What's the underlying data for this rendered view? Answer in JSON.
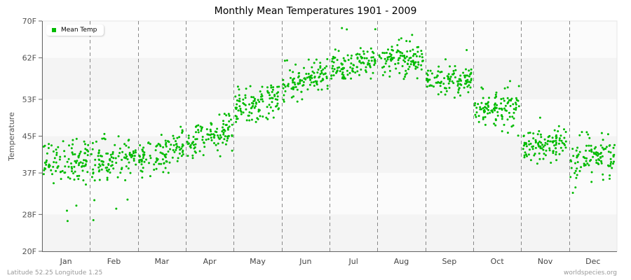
{
  "chart_data": {
    "type": "scatter",
    "title": "Monthly Mean Temperatures 1901 - 2009",
    "xlabel": "",
    "ylabel": "Temperature",
    "ylim": [
      20,
      70
    ],
    "y_ticks": [
      "70F",
      "62F",
      "53F",
      "45F",
      "37F",
      "28F",
      "20F"
    ],
    "y_tick_values": [
      70,
      62,
      53,
      45,
      37,
      28,
      20
    ],
    "categories": [
      "Jan",
      "Feb",
      "Mar",
      "Apr",
      "May",
      "Jun",
      "Jul",
      "Aug",
      "Sep",
      "Oct",
      "Nov",
      "Dec"
    ],
    "legend": [
      {
        "name": "Mean Temp",
        "color": "#00bb00"
      }
    ],
    "legend_position": "top-left",
    "grid": "alternating horizontal bands, dashed vertical month dividers",
    "points_per_month": 109,
    "series": [
      {
        "name": "Mean Temp",
        "color": "#00bb00",
        "monthly_summary": [
          {
            "month": "Jan",
            "start_mean": 38.5,
            "end_mean": 40.0,
            "spread": 3.2,
            "min": 26.5,
            "max": 45.0
          },
          {
            "month": "Feb",
            "start_mean": 39.0,
            "end_mean": 40.5,
            "spread": 3.0,
            "min": 26.5,
            "max": 45.5
          },
          {
            "month": "Mar",
            "start_mean": 39.5,
            "end_mean": 42.5,
            "spread": 2.4,
            "min": 36.0,
            "max": 47.5
          },
          {
            "month": "Apr",
            "start_mean": 43.5,
            "end_mean": 47.0,
            "spread": 2.0,
            "min": 40.0,
            "max": 50.0
          },
          {
            "month": "May",
            "start_mean": 50.5,
            "end_mean": 53.5,
            "spread": 2.2,
            "min": 48.0,
            "max": 56.0
          },
          {
            "month": "Jun",
            "start_mean": 55.5,
            "end_mean": 59.0,
            "spread": 2.0,
            "min": 52.5,
            "max": 62.0
          },
          {
            "month": "Jul",
            "start_mean": 60.0,
            "end_mean": 62.0,
            "spread": 2.0,
            "min": 57.5,
            "max": 68.5
          },
          {
            "month": "Aug",
            "start_mean": 61.5,
            "end_mean": 61.5,
            "spread": 2.0,
            "min": 57.0,
            "max": 68.0
          },
          {
            "month": "Sep",
            "start_mean": 57.5,
            "end_mean": 57.5,
            "spread": 1.8,
            "min": 53.0,
            "max": 64.0
          },
          {
            "month": "Oct",
            "start_mean": 50.0,
            "end_mean": 52.0,
            "spread": 2.0,
            "min": 44.5,
            "max": 57.0
          },
          {
            "month": "Nov",
            "start_mean": 42.5,
            "end_mean": 44.5,
            "spread": 2.0,
            "min": 37.5,
            "max": 50.5
          },
          {
            "month": "Dec",
            "start_mean": 39.5,
            "end_mean": 41.0,
            "spread": 2.6,
            "min": 32.5,
            "max": 46.0
          }
        ]
      }
    ]
  },
  "footer": {
    "location": "Latitude 52.25 Longitude 1.25",
    "source": "worldspecies.org"
  }
}
